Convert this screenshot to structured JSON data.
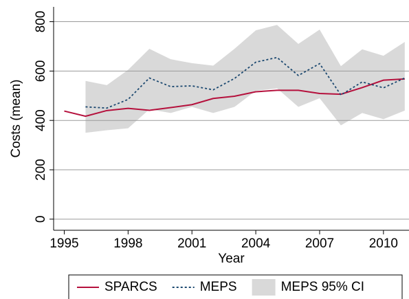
{
  "chart_data": {
    "type": "line",
    "x_label": "Year",
    "y_label": "Costs (mean)",
    "x": [
      1995,
      1996,
      1997,
      1998,
      1999,
      2000,
      2001,
      2002,
      2003,
      2004,
      2005,
      2006,
      2007,
      2008,
      2009,
      2010,
      2011
    ],
    "series": [
      {
        "name": "SPARCS",
        "color": "#b5103c",
        "style": "solid",
        "values": [
          438,
          417,
          440,
          449,
          441,
          452,
          464,
          489,
          498,
          516,
          522,
          522,
          509,
          506,
          533,
          563,
          568
        ]
      },
      {
        "name": "MEPS",
        "color": "#1a476f",
        "style": "dotted",
        "values": [
          null,
          455,
          450,
          485,
          572,
          537,
          540,
          524,
          570,
          636,
          655,
          582,
          630,
          503,
          556,
          532,
          572
        ]
      }
    ],
    "band": {
      "name": "MEPS 95% CI",
      "color": "#d9d9d9",
      "lower": [
        null,
        350,
        360,
        368,
        445,
        430,
        455,
        430,
        455,
        520,
        530,
        455,
        490,
        380,
        430,
        405,
        440
      ],
      "upper": [
        null,
        560,
        543,
        605,
        690,
        648,
        632,
        622,
        690,
        765,
        787,
        710,
        768,
        620,
        688,
        662,
        718
      ]
    },
    "xlim": [
      1994.5,
      2011.2
    ],
    "ylim": [
      -45,
      860
    ],
    "xticks": [
      1995,
      1998,
      2001,
      2004,
      2007,
      2010
    ],
    "yticks": [
      0,
      200,
      400,
      600,
      800
    ],
    "grid": true,
    "legend": "bottom"
  }
}
